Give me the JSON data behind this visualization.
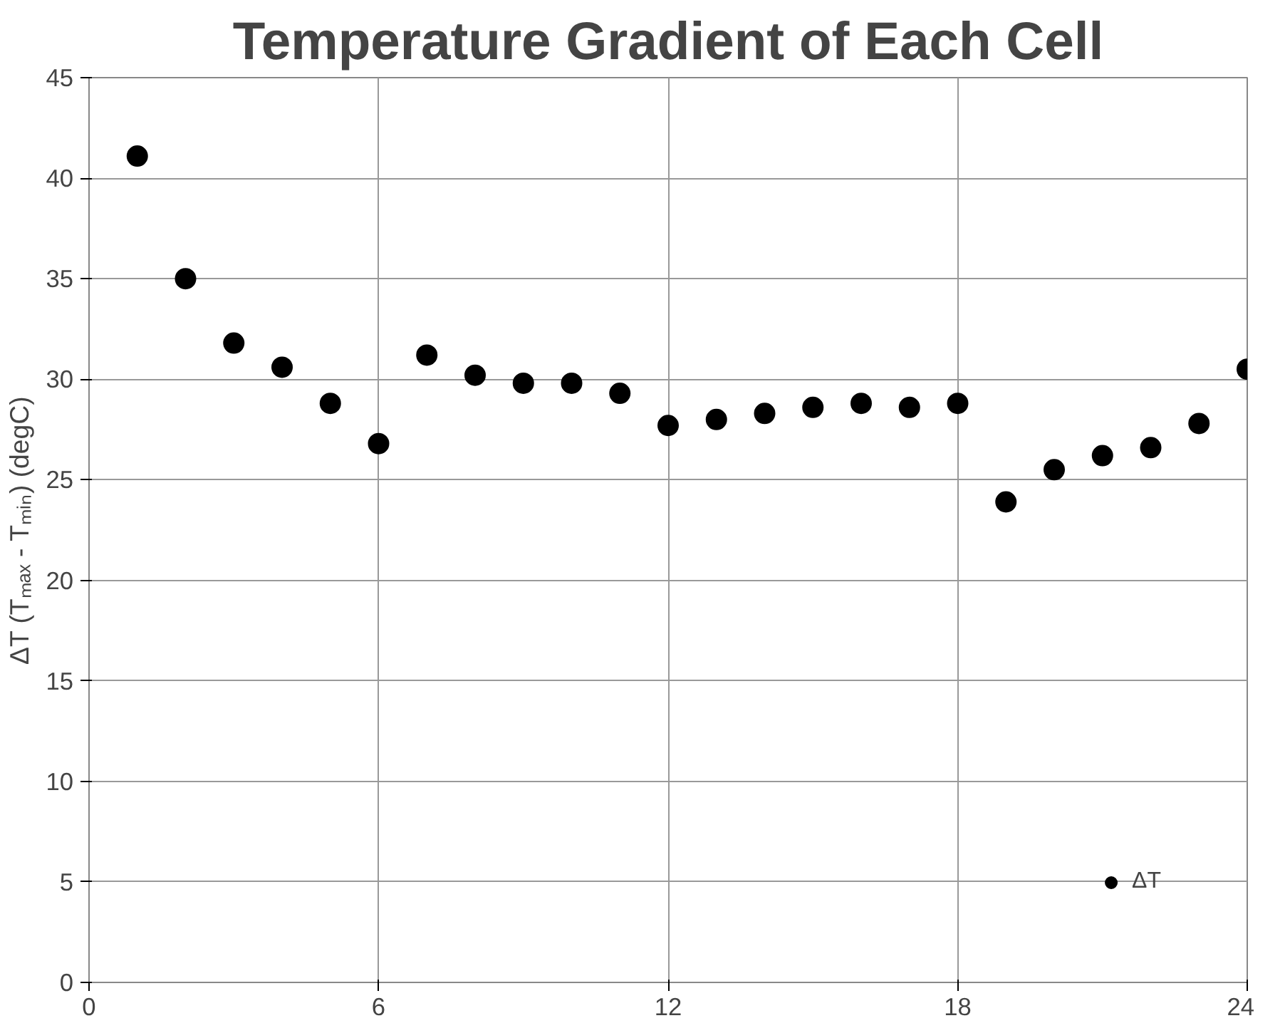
{
  "chart_data": {
    "type": "scatter",
    "title": "Temperature Gradient of Each Cell",
    "ylabel": "ΔT (Tₘₐₓ - Tₘᵢₙ) (degC)",
    "x": [
      1,
      2,
      3,
      4,
      5,
      6,
      7,
      8,
      9,
      10,
      11,
      12,
      13,
      14,
      15,
      16,
      17,
      18,
      19,
      20,
      21,
      22,
      23,
      24
    ],
    "series": [
      {
        "name": "ΔT",
        "color": "#000000",
        "values": [
          41.1,
          35.0,
          31.8,
          30.6,
          28.8,
          26.8,
          31.2,
          30.2,
          29.8,
          29.8,
          29.3,
          27.7,
          28.0,
          28.3,
          28.6,
          28.8,
          28.6,
          28.8,
          23.9,
          25.5,
          26.2,
          26.6,
          27.8,
          30.5
        ]
      }
    ],
    "xlim": [
      0,
      24
    ],
    "xticks": [
      0,
      6,
      12,
      18,
      24
    ],
    "ylim": [
      0,
      45
    ],
    "yticks": [
      0,
      5,
      10,
      15,
      20,
      25,
      30,
      35,
      40,
      45
    ],
    "grid": true,
    "legend": "bottom right",
    "marker": "circle"
  }
}
